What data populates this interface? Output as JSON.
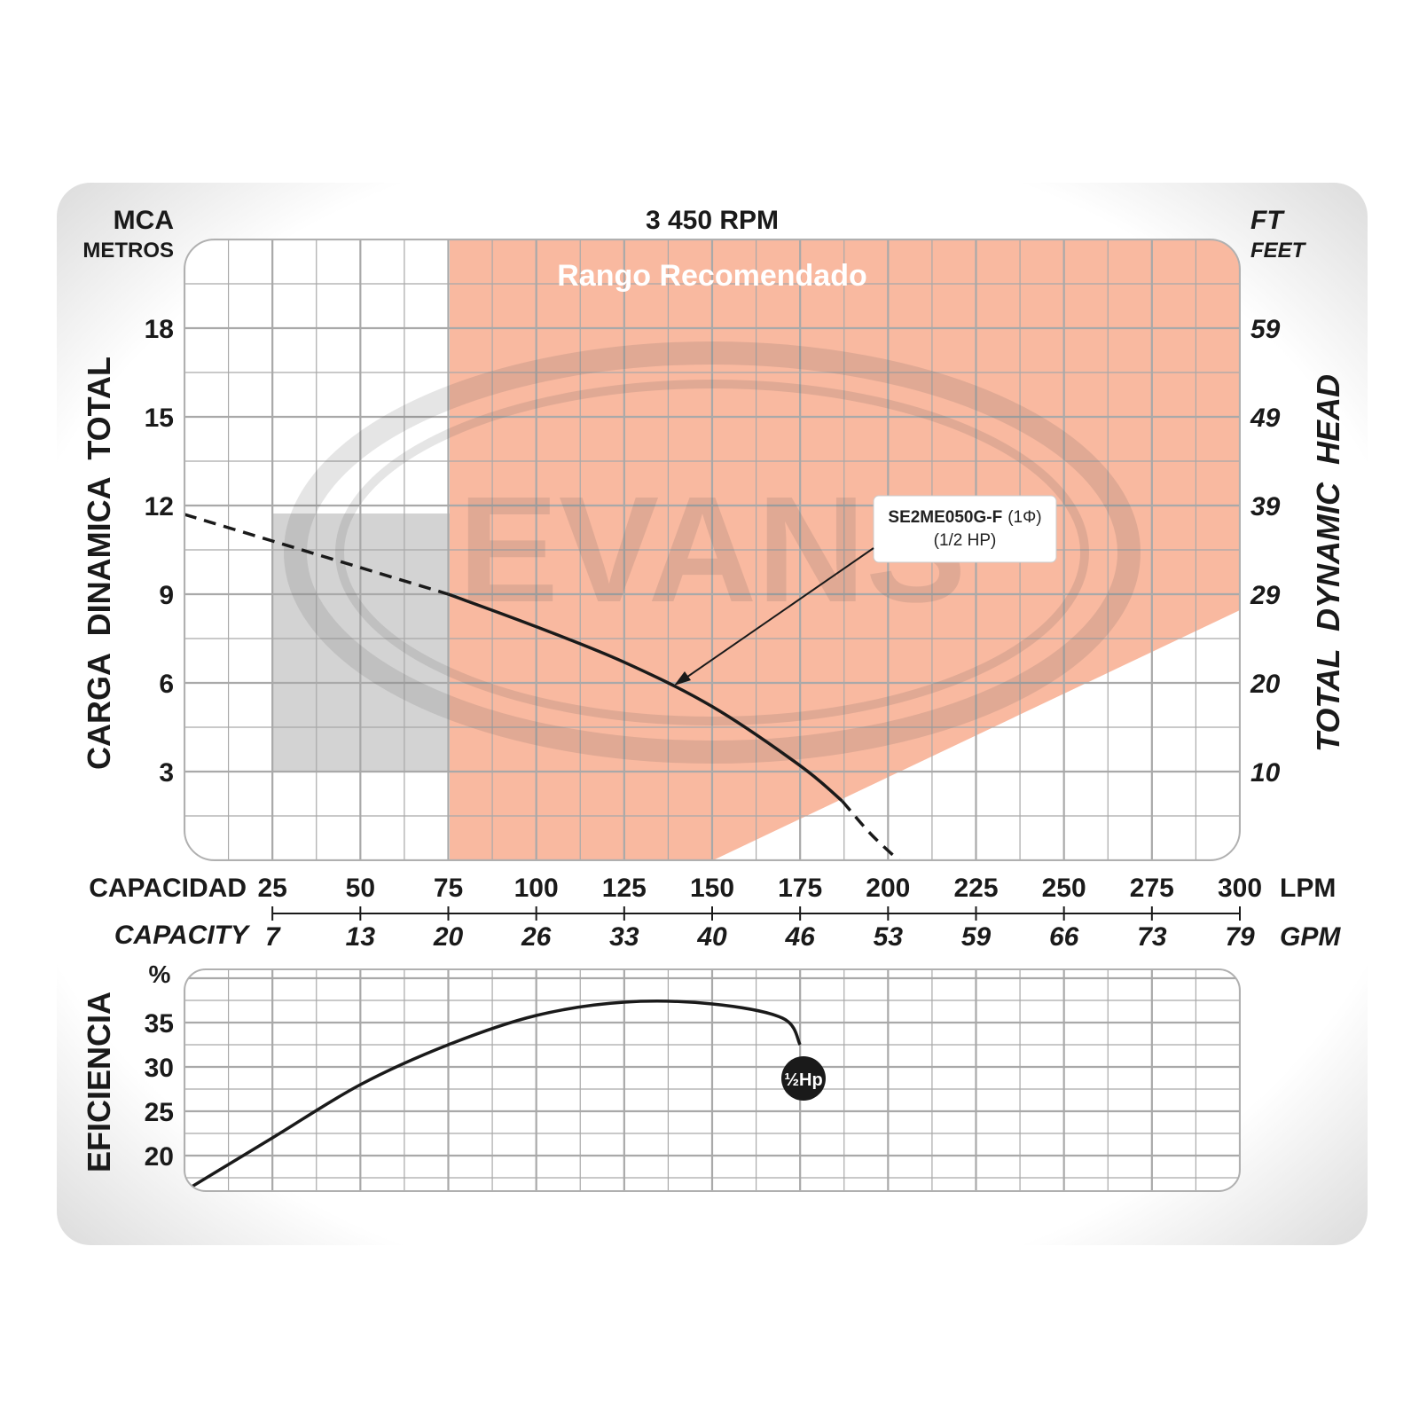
{
  "header": {
    "rpm": "3 450 RPM",
    "left_unit_top": "MCA",
    "left_unit_bottom": "METROS",
    "right_unit_top": "FT",
    "right_unit_bottom": "FEET"
  },
  "axes": {
    "left_title": "CARGA  DINAMICA  TOTAL",
    "right_title": "TOTAL  DYNAMIC  HEAD",
    "capacity_es": "CAPACIDAD",
    "capacity_en": "CAPACITY",
    "lpm_unit": "LPM",
    "gpm_unit": "GPM",
    "eff_title": "EFICIENCIA",
    "eff_unit": "%"
  },
  "recommended_range_label": "Rango Recomendado",
  "watermark": "EVANS",
  "annotation": {
    "model": "SE2ME050G-F",
    "phase": "(1Φ)",
    "hp": "(1/2 HP)",
    "eff_badge": "½Hp"
  },
  "colors": {
    "recommended_range": "#f9b9a0",
    "gray_region": "#d3d3d3",
    "grid": "#a9a9a9",
    "curve": "#1a1a1a",
    "frame": "#dcdcdc"
  },
  "chart_data": [
    {
      "type": "line",
      "title": "3 450 RPM",
      "xlabel": "CAPACIDAD / CAPACITY (LPM)",
      "ylabel": "CARGA DINAMICA TOTAL (MCA)",
      "x_ticks_lpm": [
        25,
        50,
        75,
        100,
        125,
        150,
        175,
        200,
        225,
        250,
        275,
        300
      ],
      "x_ticks_gpm": [
        7,
        13,
        20,
        26,
        33,
        40,
        46,
        53,
        59,
        66,
        73,
        79
      ],
      "y_ticks_m": [
        3,
        6,
        9,
        12,
        15,
        18
      ],
      "y_ticks_ft": [
        10,
        20,
        29,
        39,
        49,
        59
      ],
      "xlim": [
        0,
        300
      ],
      "ylim": [
        0,
        21
      ],
      "grid": true,
      "series": [
        {
          "name": "SE2ME050G-F (1Φ) (1/2 HP)",
          "x": [
            0,
            25,
            50,
            75,
            100,
            125,
            150,
            175,
            187
          ],
          "y": [
            11.7,
            10.8,
            9.9,
            9.0,
            7.9,
            6.7,
            5.2,
            3.2,
            2.0
          ],
          "style": "solid",
          "dashed_below_x": 75,
          "dashed_above_x": 187
        },
        {
          "name": "extension",
          "x": [
            187,
            195,
            203
          ],
          "y": [
            2.0,
            0.9,
            0.0
          ],
          "style": "dashed"
        }
      ]
    },
    {
      "type": "line",
      "ylabel": "EFICIENCIA (%)",
      "xlim": [
        0,
        300
      ],
      "ylim": [
        16,
        41
      ],
      "y_ticks": [
        20,
        25,
        30,
        35
      ],
      "grid": true,
      "series": [
        {
          "name": "½Hp",
          "x": [
            0,
            25,
            50,
            75,
            100,
            125,
            150,
            170,
            175
          ],
          "y": [
            16,
            22,
            28,
            32.5,
            35.8,
            37.3,
            37.1,
            35.5,
            32.5
          ]
        }
      ]
    }
  ]
}
